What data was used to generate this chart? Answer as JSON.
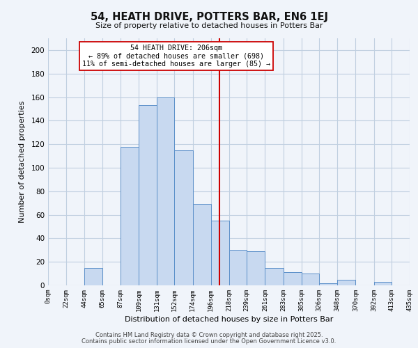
{
  "title": "54, HEATH DRIVE, POTTERS BAR, EN6 1EJ",
  "subtitle": "Size of property relative to detached houses in Potters Bar",
  "xlabel": "Distribution of detached houses by size in Potters Bar",
  "ylabel": "Number of detached properties",
  "bar_edges": [
    0,
    22,
    44,
    65,
    87,
    109,
    131,
    152,
    174,
    196,
    218,
    239,
    261,
    283,
    305,
    326,
    348,
    370,
    392,
    413,
    435
  ],
  "bar_heights": [
    0,
    0,
    15,
    0,
    118,
    153,
    160,
    115,
    69,
    55,
    30,
    29,
    15,
    11,
    10,
    2,
    5,
    0,
    3,
    0
  ],
  "bar_color": "#c8d9f0",
  "bar_edge_color": "#5b8fc9",
  "tick_labels": [
    "0sqm",
    "22sqm",
    "44sqm",
    "65sqm",
    "87sqm",
    "109sqm",
    "131sqm",
    "152sqm",
    "174sqm",
    "196sqm",
    "218sqm",
    "239sqm",
    "261sqm",
    "283sqm",
    "305sqm",
    "326sqm",
    "348sqm",
    "370sqm",
    "392sqm",
    "413sqm",
    "435sqm"
  ],
  "vline_x": 206,
  "vline_color": "#cc0000",
  "ylim": [
    0,
    210
  ],
  "yticks": [
    0,
    20,
    40,
    60,
    80,
    100,
    120,
    140,
    160,
    180,
    200
  ],
  "annotation_title": "54 HEATH DRIVE: 206sqm",
  "annotation_line1": "← 89% of detached houses are smaller (698)",
  "annotation_line2": "11% of semi-detached houses are larger (85) →",
  "footer1": "Contains HM Land Registry data © Crown copyright and database right 2025.",
  "footer2": "Contains public sector information licensed under the Open Government Licence v3.0.",
  "bg_color": "#f0f4fa",
  "grid_color": "#c0cfe0"
}
